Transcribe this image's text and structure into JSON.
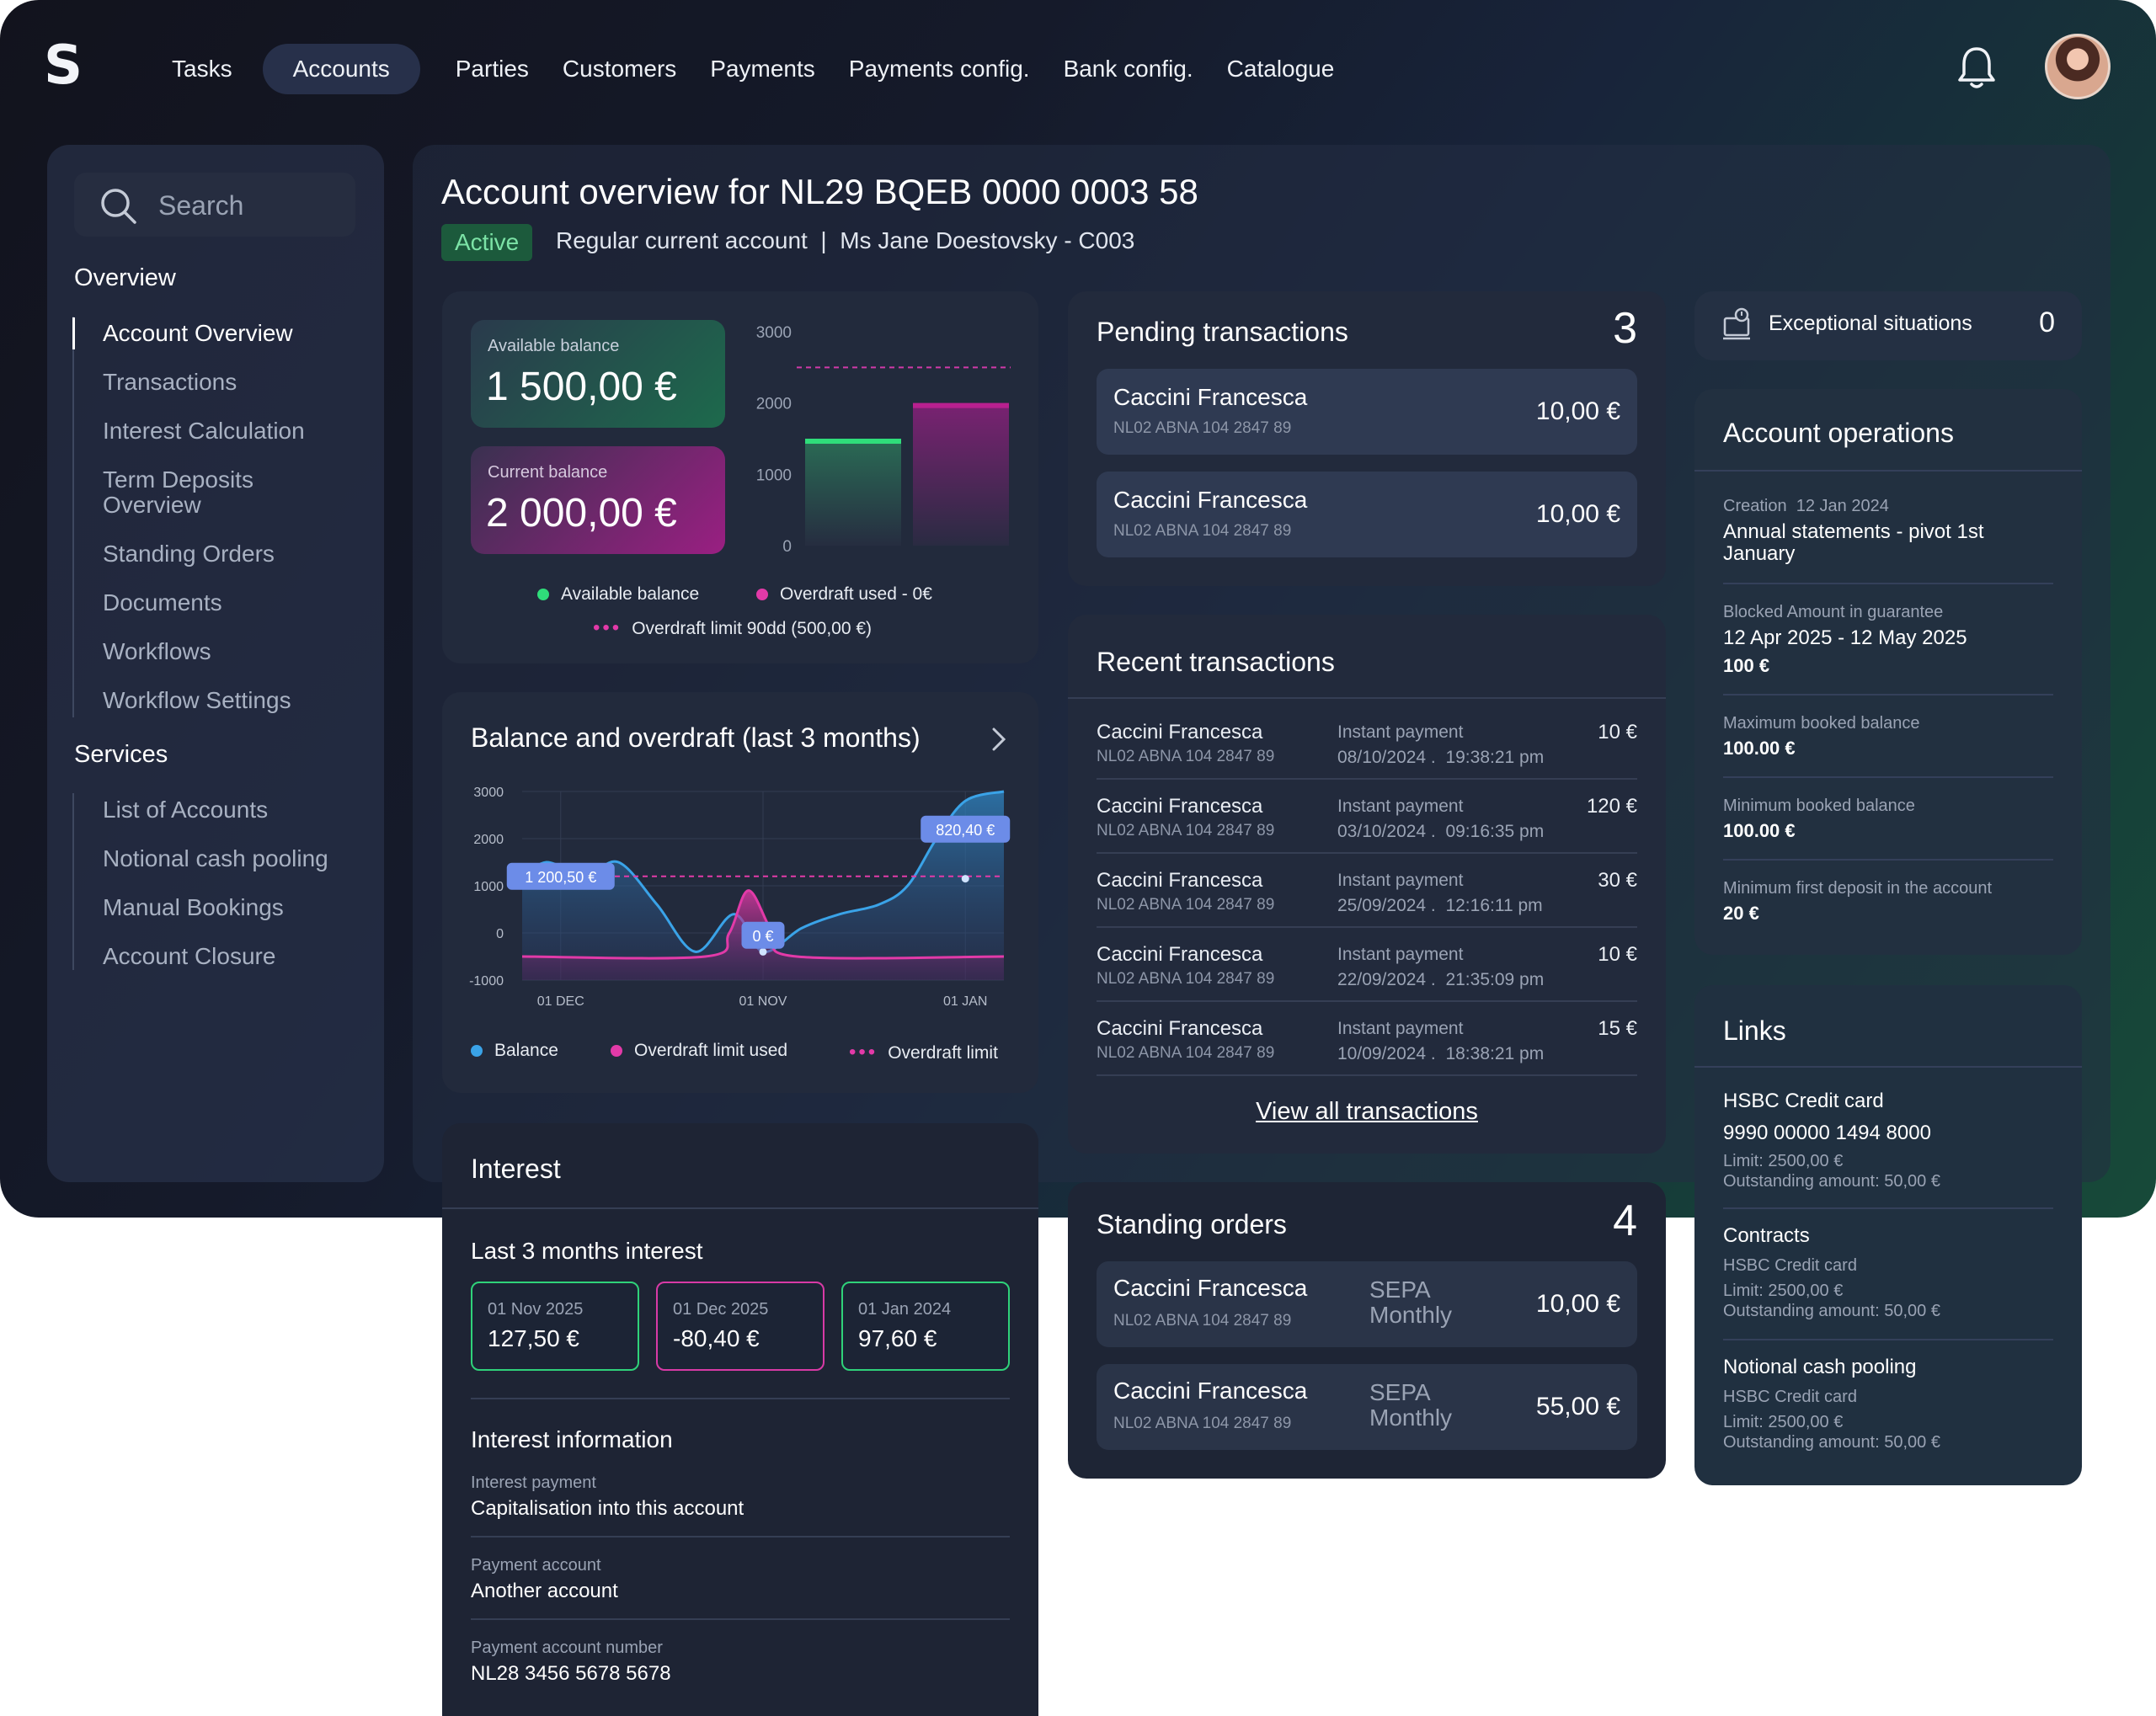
{
  "header": {
    "logo": "S",
    "nav": [
      {
        "label": "Tasks",
        "active": false
      },
      {
        "label": "Accounts",
        "active": true
      },
      {
        "label": "Parties",
        "active": false
      },
      {
        "label": "Customers",
        "active": false
      },
      {
        "label": "Payments",
        "active": false
      },
      {
        "label": "Payments config.",
        "active": false
      },
      {
        "label": "Bank config.",
        "active": false
      },
      {
        "label": "Catalogue",
        "active": false
      }
    ]
  },
  "sidebar": {
    "search_placeholder": "Search",
    "overview_title": "Overview",
    "overview_items": [
      "Account Overview",
      "Transactions",
      "Interest Calculation",
      "Term Deposits",
      "Overview",
      "Standing Orders",
      "Documents",
      "Workflows",
      "Workflow Settings"
    ],
    "services_title": "Services",
    "services_items": [
      "List of Accounts",
      "Notional cash pooling",
      "Manual Bookings",
      "Account Closure"
    ]
  },
  "account": {
    "title": "Account overview for NL29 BQEB 0000 0003 58",
    "status": "Active",
    "subtitle": "Regular current account  |  Ms Jane Doestovsky - C003"
  },
  "balances": {
    "available_label": "Available balance",
    "available_value": "1 500,00 €",
    "current_label": "Current balance",
    "current_value": "2 000,00 €",
    "legend_available": "Available balance",
    "legend_overdraft": "Overdraft used - 0€",
    "legend_limit": "Overdraft limit 90dd (500,00 €)"
  },
  "overdraft_chart": {
    "title": "Balance and overdraft (last 3 months)",
    "legend_balance": "Balance",
    "legend_used": "Overdraft limit used",
    "legend_limit": "Overdraft limit",
    "callouts": [
      "1 200,50 €",
      "0 €",
      "820,40 €"
    ]
  },
  "chart_data": [
    {
      "type": "bar",
      "categories": [
        "Available balance",
        "Current balance"
      ],
      "values": [
        1500,
        2000
      ],
      "overdraft_limit_line": 2500,
      "yticks": [
        "3000",
        "2000",
        "1000",
        "0"
      ],
      "ylim": [
        0,
        3000
      ],
      "colors": {
        "available": "#2fdd7a",
        "current": "#b8208f",
        "limit": "#d03aa8"
      }
    },
    {
      "type": "area",
      "xticks": [
        "01 DEC",
        "01 NOV",
        "01 JAN"
      ],
      "yticks": [
        "3000",
        "2000",
        "1000",
        "0",
        "-1000"
      ],
      "ylim": [
        -1000,
        3000
      ],
      "series": [
        {
          "name": "Balance",
          "color": "#3aa3e8",
          "x": [
            0,
            0.05,
            0.13,
            0.2,
            0.28,
            0.36,
            0.44,
            0.5,
            0.58,
            0.66,
            0.74,
            0.8,
            0.86,
            0.92,
            1
          ],
          "values": [
            1100,
            1500,
            1200,
            1500,
            600,
            -400,
            400,
            -400,
            100,
            400,
            600,
            1000,
            2000,
            2800,
            3000
          ]
        },
        {
          "name": "Overdraft limit used",
          "color": "#e23aa8",
          "x": [
            0,
            0.38,
            0.43,
            0.47,
            0.52,
            0.57,
            1
          ],
          "values": [
            -500,
            -500,
            0,
            900,
            0,
            -500,
            -500
          ]
        }
      ],
      "overdraft_limit": 1200
    }
  ],
  "pending": {
    "title": "Pending transactions",
    "count": "3",
    "items": [
      {
        "name": "Caccini Francesca",
        "iban": "NL02 ABNA 104 2847 89",
        "amount": "10,00 €"
      },
      {
        "name": "Caccini Francesca",
        "iban": "NL02 ABNA 104 2847 89",
        "amount": "10,00 €"
      }
    ]
  },
  "recent": {
    "title": "Recent transactions",
    "items": [
      {
        "name": "Caccini Francesca",
        "iban": "NL02 ABNA 104 2847 89",
        "type": "Instant payment",
        "date": "08/10/2024 .  19:38:21 pm",
        "amount": "10 €"
      },
      {
        "name": "Caccini Francesca",
        "iban": "NL02 ABNA 104 2847 89",
        "type": "Instant payment",
        "date": "03/10/2024 .  09:16:35 pm",
        "amount": "120 €"
      },
      {
        "name": "Caccini Francesca",
        "iban": "NL02 ABNA 104 2847 89",
        "type": "Instant payment",
        "date": "25/09/2024 .  12:16:11 pm",
        "amount": "30 €"
      },
      {
        "name": "Caccini Francesca",
        "iban": "NL02 ABNA 104 2847 89",
        "type": "Instant payment",
        "date": "22/09/2024 .  21:35:09 pm",
        "amount": "10 €"
      },
      {
        "name": "Caccini Francesca",
        "iban": "NL02 ABNA 104 2847 89",
        "type": "Instant payment",
        "date": "10/09/2024 .  18:38:21 pm",
        "amount": "15 €"
      }
    ],
    "view_all": "View all transactions"
  },
  "standing": {
    "title": "Standing orders",
    "count": "4",
    "items": [
      {
        "name": "Caccini Francesca",
        "iban": "NL02 ABNA 104 2847 89",
        "type": "SEPA",
        "freq": "Monthly",
        "amount": "10,00 €"
      },
      {
        "name": "Caccini Francesca",
        "iban": "NL02 ABNA 104 2847 89",
        "type": "SEPA",
        "freq": "Monthly",
        "amount": "55,00 €"
      }
    ]
  },
  "exceptional": {
    "label": "Exceptional situations",
    "count": "0"
  },
  "operations": {
    "title": "Account operations",
    "creation_label": "Creation",
    "creation_date": "12 Jan 2024",
    "creation_value_1": "Annual statements - pivot 1st",
    "creation_value_2": "January",
    "blocked_label": "Blocked Amount in guarantee",
    "blocked_dates": "12 Apr 2025 - 12 May 2025",
    "blocked_amount": "100 €",
    "max_label": "Maximum booked balance",
    "max_value": "100.00 €",
    "min_label": "Minimum booked balance",
    "min_value": "100.00 €",
    "first_label": "Minimum first deposit in the account",
    "first_value": "20 €"
  },
  "links": {
    "title": "Links",
    "card_title": "HSBC Credit card",
    "card_number": "9990 00000 1494 8000",
    "card_limit": "Limit: 2500,00 €",
    "card_outstanding": "Outstanding amount: 50,00 €",
    "contracts_title": "Contracts",
    "contracts_sub": "HSBC Credit card",
    "contracts_limit": "Limit: 2500,00 €",
    "contracts_outstanding": "Outstanding amount: 50,00 €",
    "pool_title": "Notional cash pooling",
    "pool_sub": "HSBC Credit card",
    "pool_limit": "Limit: 2500,00 €",
    "pool_outstanding": "Outstanding amount: 50,00 €"
  },
  "interest": {
    "title": "Interest",
    "last3_title": "Last 3 months interest",
    "months": [
      {
        "date": "01 Nov 2025",
        "value": "127,50 €",
        "color": "#2fd27a"
      },
      {
        "date": "01 Dec 2025",
        "value": "-80,40 €",
        "color": "#d83aa6"
      },
      {
        "date": "01 Jan 2024",
        "value": "97,60 €",
        "color": "#2fd27a"
      }
    ],
    "info_title": "Interest information",
    "payment_label": "Interest payment",
    "payment_value": "Capitalisation into this account",
    "account_label": "Payment account",
    "account_value": "Another account",
    "number_label": "Payment account number",
    "number_value": "NL28 3456 5678 5678"
  }
}
